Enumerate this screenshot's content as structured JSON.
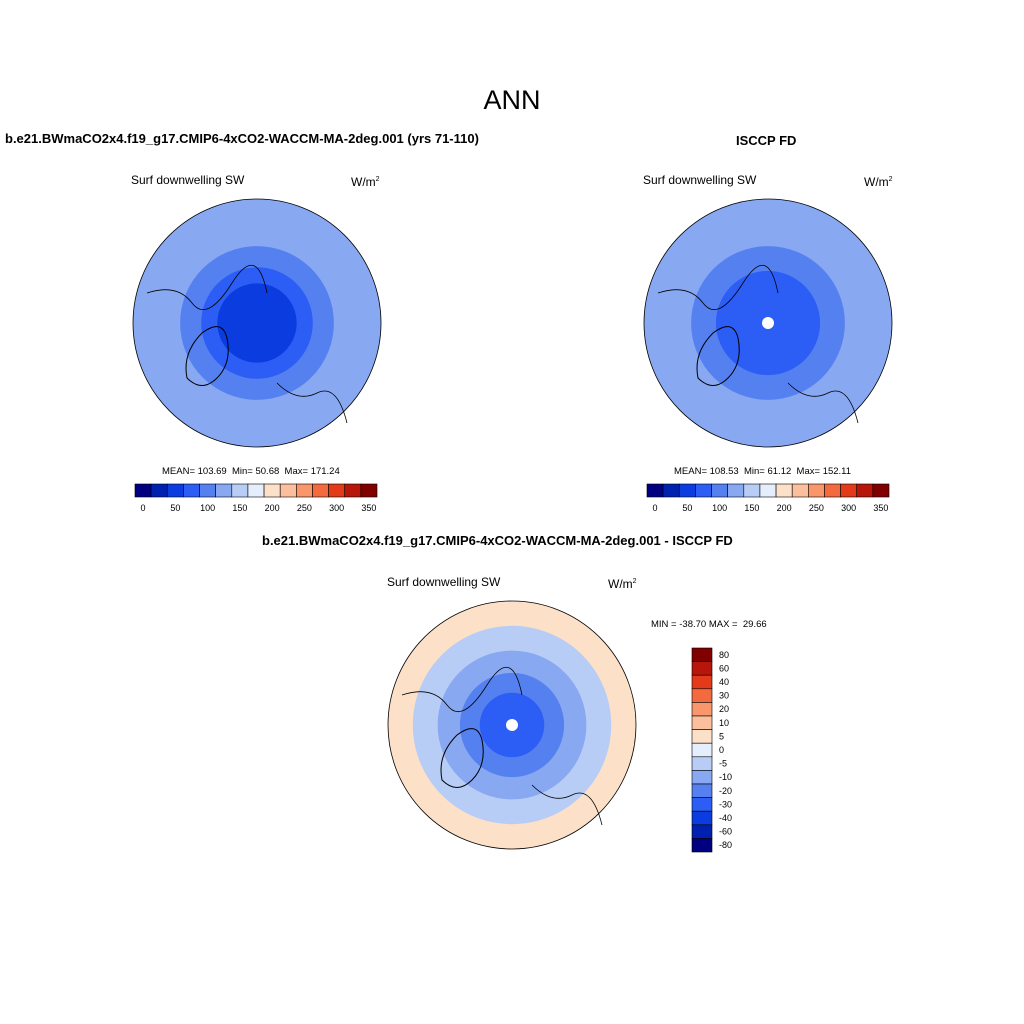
{
  "figure": {
    "season": "ANN",
    "variable": "Surf downwelling SW",
    "units_base": "W/m",
    "units_exp": "2"
  },
  "colors": {
    "abs_scale": [
      "#000080",
      "#0020b0",
      "#0a3ce0",
      "#2c5ef5",
      "#5580f0",
      "#88a8f2",
      "#b8cdf6",
      "#e4eefc",
      "#fde0c8",
      "#fcbf9e",
      "#f9966c",
      "#f36a3e",
      "#e33a1a",
      "#b8160a",
      "#800000"
    ],
    "diff_scale": [
      "#000080",
      "#0020b0",
      "#0a3ce0",
      "#2c5ef5",
      "#5580f0",
      "#88a8f2",
      "#b8cdf6",
      "#e4eefc",
      "#fde0c8",
      "#fcbf9e",
      "#f9966c",
      "#f36a3e",
      "#e33a1a",
      "#b8160a",
      "#800000"
    ],
    "coastline": "#000000",
    "missing": "#ffffff"
  },
  "chart_data": [
    {
      "type": "heatmap",
      "projection": "north-polar-stereographic",
      "title": "b.e21.BWmaCO2x4.f19_g17.CMIP6-4xCO2-WACCM-MA-2deg.001 (yrs 71-110)",
      "stats": {
        "mean_label": "MEAN=",
        "mean": "103.69",
        "min_label": "Min=",
        "min": "50.68",
        "max_label": "Max=",
        "max": "171.24"
      },
      "colorbar_ticks": [
        "0",
        "50",
        "100",
        "150",
        "200",
        "250",
        "300",
        "350"
      ],
      "levels": [
        0,
        25,
        50,
        75,
        100,
        125,
        150,
        175,
        200,
        225,
        250,
        275,
        300,
        325,
        350
      ],
      "rings": [
        {
          "radius_frac": 1.0,
          "value": 140
        },
        {
          "radius_frac": 0.85,
          "value": 125
        },
        {
          "radius_frac": 0.62,
          "value": 110
        },
        {
          "radius_frac": 0.45,
          "value": 85
        },
        {
          "radius_frac": 0.32,
          "value": 70
        }
      ]
    },
    {
      "type": "heatmap",
      "projection": "north-polar-stereographic",
      "title": "ISCCP FD",
      "stats": {
        "mean_label": "MEAN=",
        "mean": "108.53",
        "min_label": "Min=",
        "min": "61.12",
        "max_label": "Max=",
        "max": "152.11"
      },
      "colorbar_ticks": [
        "0",
        "50",
        "100",
        "150",
        "200",
        "250",
        "300",
        "350"
      ],
      "levels": [
        0,
        25,
        50,
        75,
        100,
        125,
        150,
        175,
        200,
        225,
        250,
        275,
        300,
        325,
        350
      ],
      "rings": [
        {
          "radius_frac": 1.0,
          "value": 140
        },
        {
          "radius_frac": 0.88,
          "value": 125
        },
        {
          "radius_frac": 0.62,
          "value": 110
        },
        {
          "radius_frac": 0.42,
          "value": 95
        },
        {
          "radius_frac": 0.22,
          "value": 85
        }
      ]
    },
    {
      "type": "heatmap",
      "projection": "north-polar-stereographic",
      "title": "b.e21.BWmaCO2x4.f19_g17.CMIP6-4xCO2-WACCM-MA-2deg.001 - ISCCP FD",
      "stats": {
        "min_label": "MIN =",
        "min": "-38.70",
        "max_label": "MAX =",
        "max": "29.66"
      },
      "colorbar_ticks": [
        "80",
        "60",
        "40",
        "30",
        "20",
        "10",
        "5",
        "0",
        "-5",
        "-10",
        "-20",
        "-30",
        "-40",
        "-60",
        "-80"
      ],
      "levels": [
        -80,
        -60,
        -40,
        -30,
        -20,
        -10,
        -5,
        0,
        5,
        10,
        20,
        30,
        40,
        60,
        80
      ],
      "rings": [
        {
          "radius_frac": 1.0,
          "value": 8
        },
        {
          "radius_frac": 0.8,
          "value": -3
        },
        {
          "radius_frac": 0.6,
          "value": -8
        },
        {
          "radius_frac": 0.42,
          "value": -15
        },
        {
          "radius_frac": 0.26,
          "value": -22
        }
      ]
    }
  ]
}
